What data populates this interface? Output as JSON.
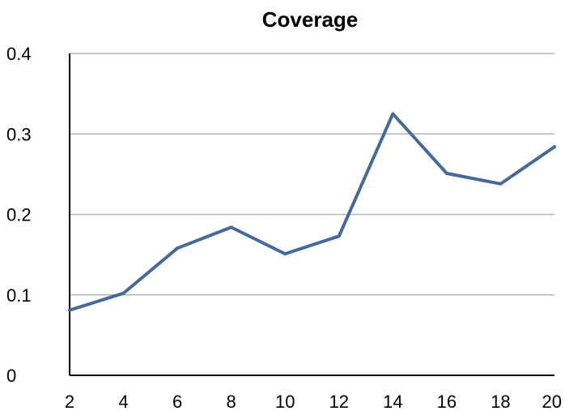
{
  "chart_data": {
    "type": "line",
    "title": "Coverage",
    "xlabel": "",
    "ylabel": "",
    "x": [
      2,
      4,
      6,
      8,
      10,
      12,
      14,
      16,
      18,
      20
    ],
    "xticks": [
      "2",
      "4",
      "6",
      "8",
      "10",
      "12",
      "14",
      "16",
      "18",
      "20"
    ],
    "xlim": [
      2,
      20
    ],
    "yticks": [
      "0",
      "0.1",
      "0.2",
      "0.3",
      "0.4"
    ],
    "ylim": [
      0,
      0.4
    ],
    "grid": "horizontal",
    "legend": "none",
    "series": [
      {
        "values": [
          0.081,
          0.102,
          0.158,
          0.184,
          0.151,
          0.173,
          0.325,
          0.251,
          0.238,
          0.284
        ],
        "color": "#44699a"
      }
    ]
  }
}
